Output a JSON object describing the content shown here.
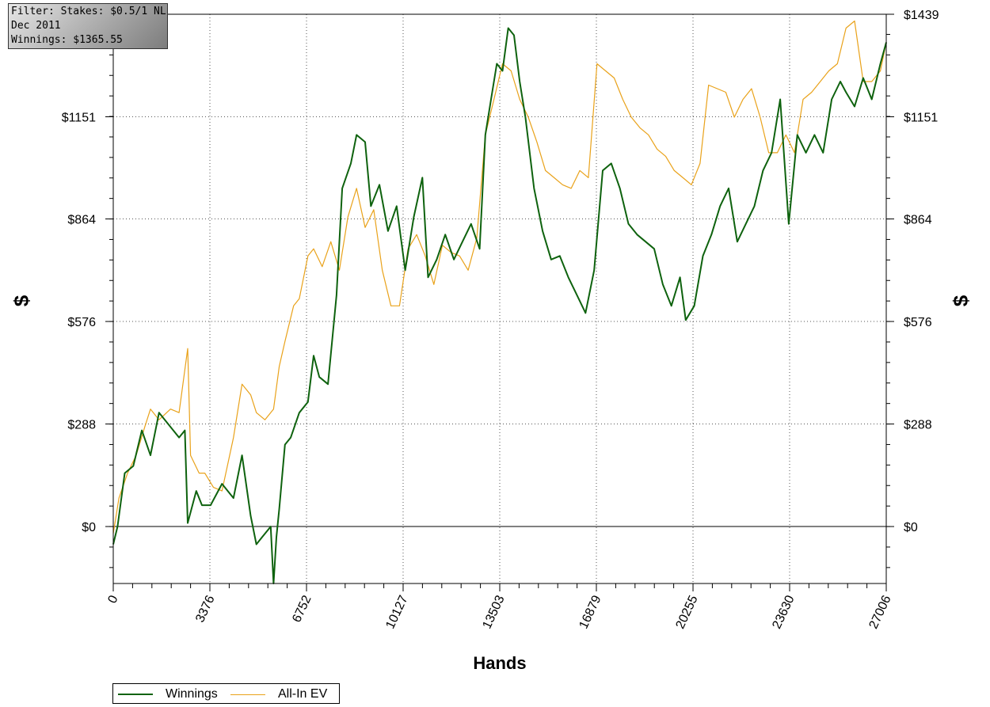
{
  "filter_box": {
    "lines": [
      "Filter: Stakes: $0.5/1 NL,",
      "Dec 2011",
      "Winnings: $1365.55"
    ]
  },
  "chart_data": {
    "type": "line",
    "xlabel": "Hands",
    "ylabel": "$",
    "xlim": [
      0,
      27006
    ],
    "ylim": [
      -160,
      1439
    ],
    "x_ticks": [
      0,
      3376,
      6752,
      10127,
      13503,
      16879,
      20255,
      23630,
      27006
    ],
    "y_ticks": [
      0,
      288,
      576,
      864,
      1151,
      1439
    ],
    "y_tick_labels": [
      "$0",
      "$288",
      "$576",
      "$864",
      "$1151",
      "$1439"
    ],
    "zero_line": true,
    "grid": "dotted",
    "legend_position": "bottom-left",
    "series": [
      {
        "name": "Winnings",
        "color": "#0e620e",
        "x": [
          0,
          150,
          400,
          700,
          1000,
          1300,
          1600,
          2000,
          2300,
          2500,
          2600,
          2900,
          3100,
          3400,
          3800,
          4200,
          4500,
          4800,
          5000,
          5200,
          5500,
          5600,
          5700,
          5800,
          6000,
          6200,
          6500,
          6800,
          7000,
          7200,
          7500,
          7800,
          8000,
          8300,
          8500,
          8800,
          9000,
          9300,
          9600,
          9900,
          10200,
          10500,
          10800,
          11000,
          11300,
          11600,
          11900,
          12200,
          12500,
          12800,
          13000,
          13200,
          13400,
          13600,
          13800,
          14000,
          14200,
          14400,
          14700,
          15000,
          15300,
          15600,
          15900,
          16200,
          16500,
          16800,
          17100,
          17400,
          17700,
          18000,
          18300,
          18600,
          18900,
          19200,
          19500,
          19800,
          20000,
          20300,
          20600,
          20900,
          21200,
          21500,
          21800,
          22100,
          22400,
          22700,
          23000,
          23300,
          23600,
          23900,
          24200,
          24500,
          24800,
          25100,
          25400,
          25600,
          25900,
          26200,
          26500,
          26800,
          27006
        ],
        "values": [
          -50,
          0,
          150,
          170,
          270,
          200,
          320,
          280,
          250,
          270,
          10,
          100,
          60,
          60,
          120,
          80,
          200,
          30,
          -50,
          -30,
          0,
          -160,
          -30,
          50,
          230,
          250,
          320,
          350,
          480,
          420,
          400,
          650,
          950,
          1020,
          1100,
          1080,
          900,
          960,
          830,
          900,
          720,
          870,
          980,
          700,
          750,
          820,
          750,
          800,
          850,
          780,
          1100,
          1200,
          1300,
          1280,
          1400,
          1380,
          1250,
          1150,
          950,
          830,
          750,
          760,
          700,
          650,
          600,
          720,
          1000,
          1020,
          950,
          850,
          820,
          800,
          780,
          680,
          620,
          700,
          580,
          620,
          760,
          820,
          900,
          950,
          800,
          850,
          900,
          1000,
          1050,
          1200,
          850,
          1100,
          1050,
          1100,
          1050,
          1200,
          1250,
          1220,
          1180,
          1260,
          1200,
          1300,
          1360
        ]
      },
      {
        "name": "All-In EV",
        "color": "#e9a21a",
        "x": [
          0,
          200,
          500,
          800,
          1100,
          1300,
          1600,
          2000,
          2300,
          2600,
          2700,
          3000,
          3200,
          3500,
          3800,
          4200,
          4500,
          4800,
          5000,
          5300,
          5600,
          5800,
          6000,
          6300,
          6500,
          6800,
          7000,
          7300,
          7600,
          7900,
          8200,
          8500,
          8800,
          9100,
          9400,
          9700,
          10000,
          10300,
          10600,
          10900,
          11200,
          11500,
          11800,
          12100,
          12400,
          12700,
          13000,
          13300,
          13600,
          13900,
          14200,
          14500,
          14800,
          15100,
          15400,
          15700,
          16000,
          16300,
          16600,
          16900,
          17200,
          17500,
          17800,
          18100,
          18400,
          18700,
          19000,
          19300,
          19600,
          19900,
          20200,
          20500,
          20800,
          21100,
          21400,
          21700,
          22000,
          22300,
          22600,
          22900,
          23200,
          23500,
          23800,
          24100,
          24400,
          24700,
          25000,
          25300,
          25600,
          25900,
          26200,
          26500,
          26800,
          27006
        ],
        "values": [
          -20,
          80,
          150,
          200,
          280,
          330,
          300,
          330,
          320,
          500,
          200,
          150,
          150,
          110,
          100,
          250,
          400,
          370,
          320,
          300,
          330,
          450,
          520,
          620,
          640,
          760,
          780,
          730,
          800,
          720,
          870,
          950,
          840,
          890,
          720,
          620,
          620,
          780,
          820,
          760,
          680,
          790,
          770,
          760,
          720,
          810,
          1100,
          1200,
          1300,
          1280,
          1200,
          1150,
          1080,
          1000,
          980,
          960,
          950,
          1000,
          980,
          1300,
          1280,
          1260,
          1200,
          1150,
          1120,
          1100,
          1060,
          1040,
          1000,
          980,
          960,
          1020,
          1240,
          1230,
          1220,
          1150,
          1200,
          1230,
          1150,
          1050,
          1050,
          1100,
          1050,
          1200,
          1220,
          1250,
          1280,
          1300,
          1400,
          1420,
          1250,
          1250,
          1280,
          1360
        ]
      }
    ]
  }
}
